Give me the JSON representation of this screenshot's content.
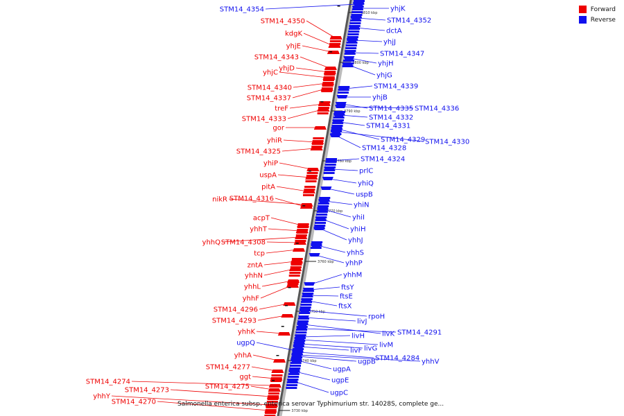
{
  "title": "Salmonella enterica subsp. enterica serovar Typhimurium str. 14028S, complete ge...",
  "legend": {
    "forward": {
      "label": "Forward",
      "color": "#ee0000"
    },
    "reverse": {
      "label": "Reverse",
      "color": "#1010ee"
    }
  },
  "scale_ticks": [
    "3810 kbp",
    "3800 kbp",
    "3790 kbp",
    "3780 kbp",
    "3770 kbp",
    "3760 kbp",
    "3750 kbp",
    "3740 kbp",
    "3730 kbp"
  ],
  "forward_genes": [
    "STM14_4350",
    "kdgK",
    "yhjE",
    "STM14_4343",
    "yhjD",
    "yhjC",
    "STM14_4340",
    "STM14_4337",
    "treF",
    "STM14_4333",
    "gor",
    "yhiR",
    "STM14_4325",
    "yhiP",
    "uspA",
    "pitA",
    "nikR",
    "STM14_4316",
    "acpT",
    "yhhT",
    "yhhQ",
    "STM14_4308",
    "tcp",
    "zntA",
    "yhhN",
    "yhhL",
    "yhhF",
    "STM14_4296",
    "STM14_4293",
    "yhhK",
    "yhhA",
    "STM14_4277",
    "ggt",
    "STM14_4274",
    "STM14_4273",
    "STM14_4275",
    "yhhY",
    "STM14_4270"
  ],
  "reverse_genes": [
    "STM14_4354",
    "yhjK",
    "STM14_4352",
    "dctA",
    "yhjJ",
    "STM14_4347",
    "yhjH",
    "yhjG",
    "STM14_4339",
    "yhjB",
    "STM14_4335",
    "STM14_4336",
    "STM14_4332",
    "STM14_4331",
    "STM14_4329",
    "STM14_4330",
    "STM14_4328",
    "STM14_4324",
    "prlC",
    "yhiQ",
    "uspB",
    "yhiN",
    "yhiI",
    "yhiH",
    "yhhJ",
    "yhhS",
    "yhhP",
    "yhhM",
    "ftsY",
    "ftsE",
    "ftsX",
    "rpoH",
    "livJ",
    "livK",
    "STM14_4291",
    "livH",
    "livM",
    "livG",
    "livF",
    "ugpQ",
    "ugpB",
    "STM14_4284",
    "yhhV",
    "ugpA",
    "ugpE",
    "ugpC"
  ]
}
